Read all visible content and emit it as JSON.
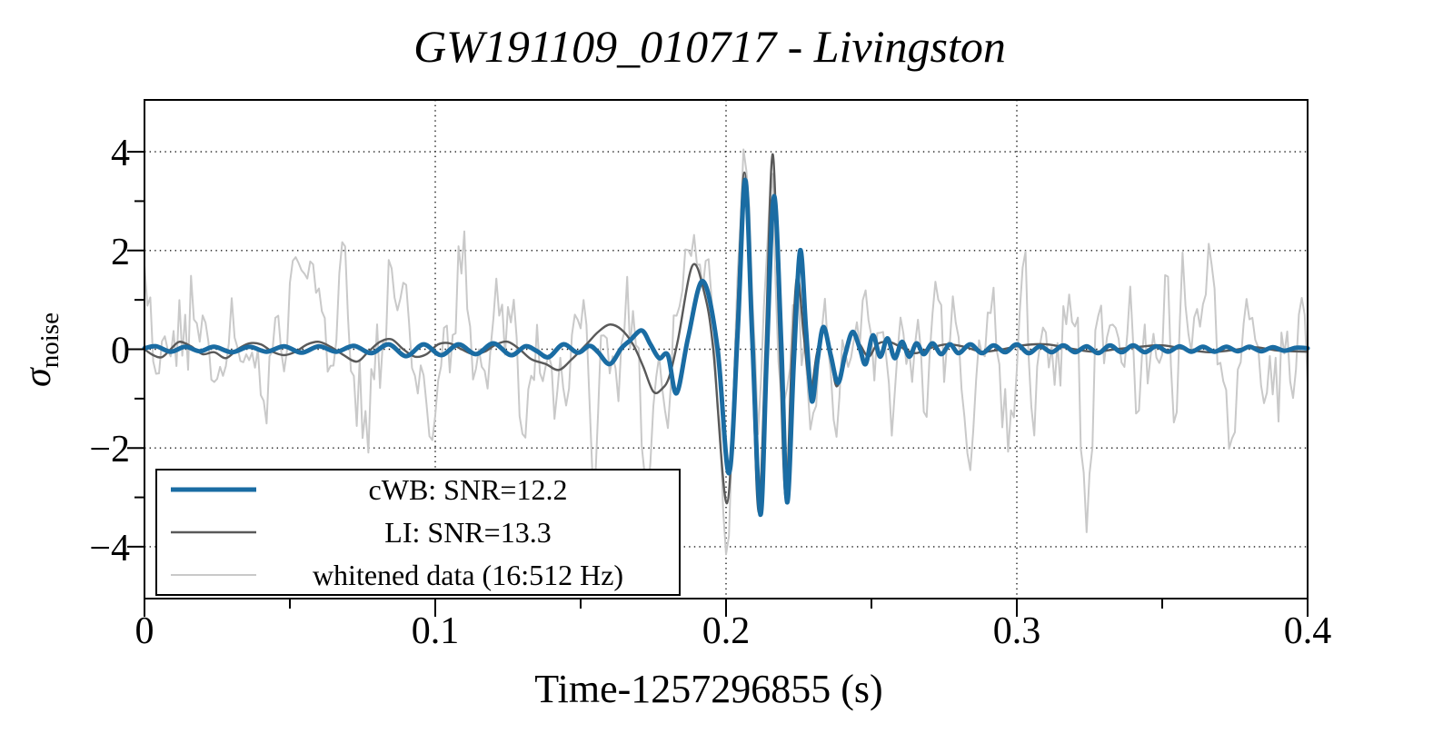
{
  "figure": {
    "background": "#ffffff",
    "border_color": "#000000",
    "grid_color": "#1a1a1a"
  },
  "chart_data": {
    "type": "line",
    "title": "GW191109_010717 - Livingston",
    "xlabel": "Time-1257296855 (s)",
    "ylabel": {
      "symbol": "σ",
      "subscript": "noise"
    },
    "xlim": [
      0,
      0.4
    ],
    "ylim": [
      -5.05,
      5.05
    ],
    "grid": {
      "x_major": true,
      "y_major": true,
      "style": "dotted"
    },
    "xticks": [
      {
        "v": 0.0,
        "label": "0"
      },
      {
        "v": 0.1,
        "label": "0.1"
      },
      {
        "v": 0.2,
        "label": "0.2"
      },
      {
        "v": 0.3,
        "label": "0.3"
      },
      {
        "v": 0.4,
        "label": "0.4"
      }
    ],
    "yticks": [
      {
        "v": 4,
        "label": "4"
      },
      {
        "v": 2,
        "label": "2"
      },
      {
        "v": 0,
        "label": "0"
      },
      {
        "v": -2,
        "label": "−2"
      },
      {
        "v": -4,
        "label": "−4"
      }
    ],
    "minor_xticks": [
      0.05,
      0.15,
      0.25,
      0.35
    ],
    "minor_yticks": [
      3,
      1,
      -1,
      -3
    ],
    "legend": {
      "position": "lower-left"
    },
    "series": [
      {
        "id": "cwb",
        "name": "cWB: SNR=12.2",
        "color": "#1a6ca3",
        "width": 5,
        "style": "smooth",
        "points": [
          [
            0.0,
            0.02
          ],
          [
            0.004,
            0.06
          ],
          [
            0.009,
            -0.05
          ],
          [
            0.014,
            0.05
          ],
          [
            0.019,
            -0.04
          ],
          [
            0.024,
            0.05
          ],
          [
            0.03,
            -0.06
          ],
          [
            0.036,
            0.05
          ],
          [
            0.042,
            -0.05
          ],
          [
            0.048,
            0.06
          ],
          [
            0.054,
            -0.07
          ],
          [
            0.06,
            0.06
          ],
          [
            0.066,
            -0.05
          ],
          [
            0.072,
            0.07
          ],
          [
            0.078,
            -0.08
          ],
          [
            0.084,
            0.1
          ],
          [
            0.09,
            -0.14
          ],
          [
            0.096,
            0.1
          ],
          [
            0.102,
            -0.12
          ],
          [
            0.108,
            0.1
          ],
          [
            0.114,
            -0.1
          ],
          [
            0.12,
            0.12
          ],
          [
            0.126,
            -0.12
          ],
          [
            0.131,
            0.06
          ],
          [
            0.135,
            -0.04
          ],
          [
            0.139,
            -0.16
          ],
          [
            0.144,
            0.1
          ],
          [
            0.149,
            -0.07
          ],
          [
            0.153,
            0.07
          ],
          [
            0.156,
            -0.06
          ],
          [
            0.16,
            -0.3
          ],
          [
            0.164,
            0.02
          ],
          [
            0.167,
            0.18
          ],
          [
            0.171,
            0.38
          ],
          [
            0.174,
            0.1
          ],
          [
            0.177,
            -0.18
          ],
          [
            0.18,
            -0.12
          ],
          [
            0.183,
            -0.89
          ],
          [
            0.187,
            0.25
          ],
          [
            0.192,
            1.38
          ],
          [
            0.197,
            0.05
          ],
          [
            0.201,
            -2.51
          ],
          [
            0.204,
            0.35
          ],
          [
            0.2066,
            3.43
          ],
          [
            0.209,
            0.25
          ],
          [
            0.2118,
            -3.35
          ],
          [
            0.214,
            -0.15
          ],
          [
            0.2165,
            3.1
          ],
          [
            0.219,
            0.1
          ],
          [
            0.221,
            -3.1
          ],
          [
            0.2233,
            -0.25
          ],
          [
            0.2255,
            2.0
          ],
          [
            0.2275,
            0.4
          ],
          [
            0.2295,
            -1.05
          ],
          [
            0.2315,
            -0.2
          ],
          [
            0.2335,
            0.45
          ],
          [
            0.236,
            -0.12
          ],
          [
            0.2385,
            -0.68
          ],
          [
            0.241,
            -0.1
          ],
          [
            0.2435,
            0.35
          ],
          [
            0.246,
            0.02
          ],
          [
            0.248,
            -0.3
          ],
          [
            0.2505,
            0.28
          ],
          [
            0.253,
            -0.15
          ],
          [
            0.2555,
            0.22
          ],
          [
            0.258,
            -0.18
          ],
          [
            0.2605,
            0.15
          ],
          [
            0.263,
            -0.15
          ],
          [
            0.2655,
            0.12
          ],
          [
            0.268,
            -0.1
          ],
          [
            0.271,
            0.12
          ],
          [
            0.274,
            -0.1
          ],
          [
            0.277,
            0.1
          ],
          [
            0.28,
            -0.08
          ],
          [
            0.284,
            0.1
          ],
          [
            0.288,
            -0.08
          ],
          [
            0.292,
            0.08
          ],
          [
            0.296,
            -0.06
          ],
          [
            0.3,
            0.1
          ],
          [
            0.304,
            -0.08
          ],
          [
            0.308,
            0.06
          ],
          [
            0.312,
            -0.06
          ],
          [
            0.316,
            0.08
          ],
          [
            0.32,
            -0.06
          ],
          [
            0.324,
            0.06
          ],
          [
            0.328,
            -0.08
          ],
          [
            0.332,
            0.08
          ],
          [
            0.336,
            -0.06
          ],
          [
            0.34,
            0.08
          ],
          [
            0.344,
            -0.06
          ],
          [
            0.348,
            0.06
          ],
          [
            0.352,
            -0.05
          ],
          [
            0.356,
            0.06
          ],
          [
            0.36,
            -0.05
          ],
          [
            0.364,
            0.05
          ],
          [
            0.368,
            -0.05
          ],
          [
            0.372,
            0.05
          ],
          [
            0.376,
            -0.04
          ],
          [
            0.38,
            0.05
          ],
          [
            0.384,
            -0.04
          ],
          [
            0.388,
            0.04
          ],
          [
            0.392,
            -0.03
          ],
          [
            0.396,
            0.03
          ],
          [
            0.4,
            0.02
          ]
        ]
      },
      {
        "id": "li",
        "name": "LI: SNR=13.3",
        "color": "#595959",
        "width": 2.4,
        "style": "smooth",
        "points": [
          [
            0.0,
            0.0
          ],
          [
            0.003,
            -0.12
          ],
          [
            0.006,
            -0.16
          ],
          [
            0.009,
            0.0
          ],
          [
            0.012,
            0.15
          ],
          [
            0.016,
            0.06
          ],
          [
            0.02,
            -0.1
          ],
          [
            0.024,
            -0.06
          ],
          [
            0.028,
            -0.18
          ],
          [
            0.032,
            0.0
          ],
          [
            0.036,
            0.12
          ],
          [
            0.04,
            0.1
          ],
          [
            0.044,
            -0.05
          ],
          [
            0.048,
            -0.12
          ],
          [
            0.052,
            -0.05
          ],
          [
            0.056,
            0.1
          ],
          [
            0.06,
            0.15
          ],
          [
            0.064,
            0.05
          ],
          [
            0.068,
            -0.1
          ],
          [
            0.073,
            -0.25
          ],
          [
            0.077,
            -0.05
          ],
          [
            0.081,
            0.15
          ],
          [
            0.085,
            0.2
          ],
          [
            0.089,
            0.0
          ],
          [
            0.093,
            -0.15
          ],
          [
            0.097,
            -0.1
          ],
          [
            0.101,
            0.1
          ],
          [
            0.105,
            0.12
          ],
          [
            0.109,
            0.0
          ],
          [
            0.113,
            -0.1
          ],
          [
            0.117,
            -0.05
          ],
          [
            0.121,
            0.1
          ],
          [
            0.125,
            0.15
          ],
          [
            0.129,
            0.0
          ],
          [
            0.133,
            -0.2
          ],
          [
            0.138,
            -0.3
          ],
          [
            0.1425,
            -0.42
          ],
          [
            0.147,
            -0.2
          ],
          [
            0.152,
            0.1
          ],
          [
            0.156,
            0.35
          ],
          [
            0.16,
            0.5
          ],
          [
            0.164,
            0.4
          ],
          [
            0.168,
            0.1
          ],
          [
            0.1715,
            -0.35
          ],
          [
            0.175,
            -0.86
          ],
          [
            0.178,
            -0.8
          ],
          [
            0.1805,
            -0.55
          ],
          [
            0.1835,
            0.2
          ],
          [
            0.1884,
            1.69
          ],
          [
            0.1925,
            1.15
          ],
          [
            0.1956,
            0.0
          ],
          [
            0.2003,
            -3.12
          ],
          [
            0.2035,
            0.25
          ],
          [
            0.2063,
            3.58
          ],
          [
            0.2088,
            0.25
          ],
          [
            0.2112,
            -3.3
          ],
          [
            0.2136,
            0.05
          ],
          [
            0.216,
            3.95
          ],
          [
            0.2183,
            0.3
          ],
          [
            0.2205,
            -3.0
          ],
          [
            0.2226,
            -0.2
          ],
          [
            0.2245,
            1.5
          ],
          [
            0.2267,
            0.3
          ],
          [
            0.229,
            -0.8
          ],
          [
            0.2312,
            -0.1
          ],
          [
            0.2335,
            0.43
          ],
          [
            0.236,
            -0.15
          ],
          [
            0.238,
            -0.75
          ],
          [
            0.2405,
            -0.3
          ],
          [
            0.243,
            0.3
          ],
          [
            0.246,
            0.1
          ],
          [
            0.249,
            -0.15
          ],
          [
            0.252,
            0.1
          ],
          [
            0.256,
            0.15
          ],
          [
            0.26,
            0.05
          ],
          [
            0.265,
            -0.08
          ],
          [
            0.27,
            0.02
          ],
          [
            0.276,
            0.1
          ],
          [
            0.282,
            0.05
          ],
          [
            0.288,
            -0.05
          ],
          [
            0.295,
            0.0
          ],
          [
            0.302,
            0.08
          ],
          [
            0.31,
            0.1
          ],
          [
            0.318,
            0.02
          ],
          [
            0.326,
            -0.05
          ],
          [
            0.334,
            0.0
          ],
          [
            0.342,
            0.05
          ],
          [
            0.35,
            0.08
          ],
          [
            0.358,
            0.0
          ],
          [
            0.366,
            -0.06
          ],
          [
            0.374,
            -0.02
          ],
          [
            0.382,
            0.04
          ],
          [
            0.39,
            -0.03
          ],
          [
            0.4,
            -0.05
          ]
        ]
      },
      {
        "id": "whitened",
        "name": "whitened data (16:512 Hz)",
        "color": "#c9c9c9",
        "width": 2,
        "style": "noise",
        "noise": {
          "seed": 9,
          "dt": 0.001,
          "sigma": 1.7,
          "smooth_passes": 1,
          "base_series": "li",
          "base_gain": 0.95,
          "clip": [
            -4.85,
            4.2
          ]
        }
      }
    ]
  }
}
